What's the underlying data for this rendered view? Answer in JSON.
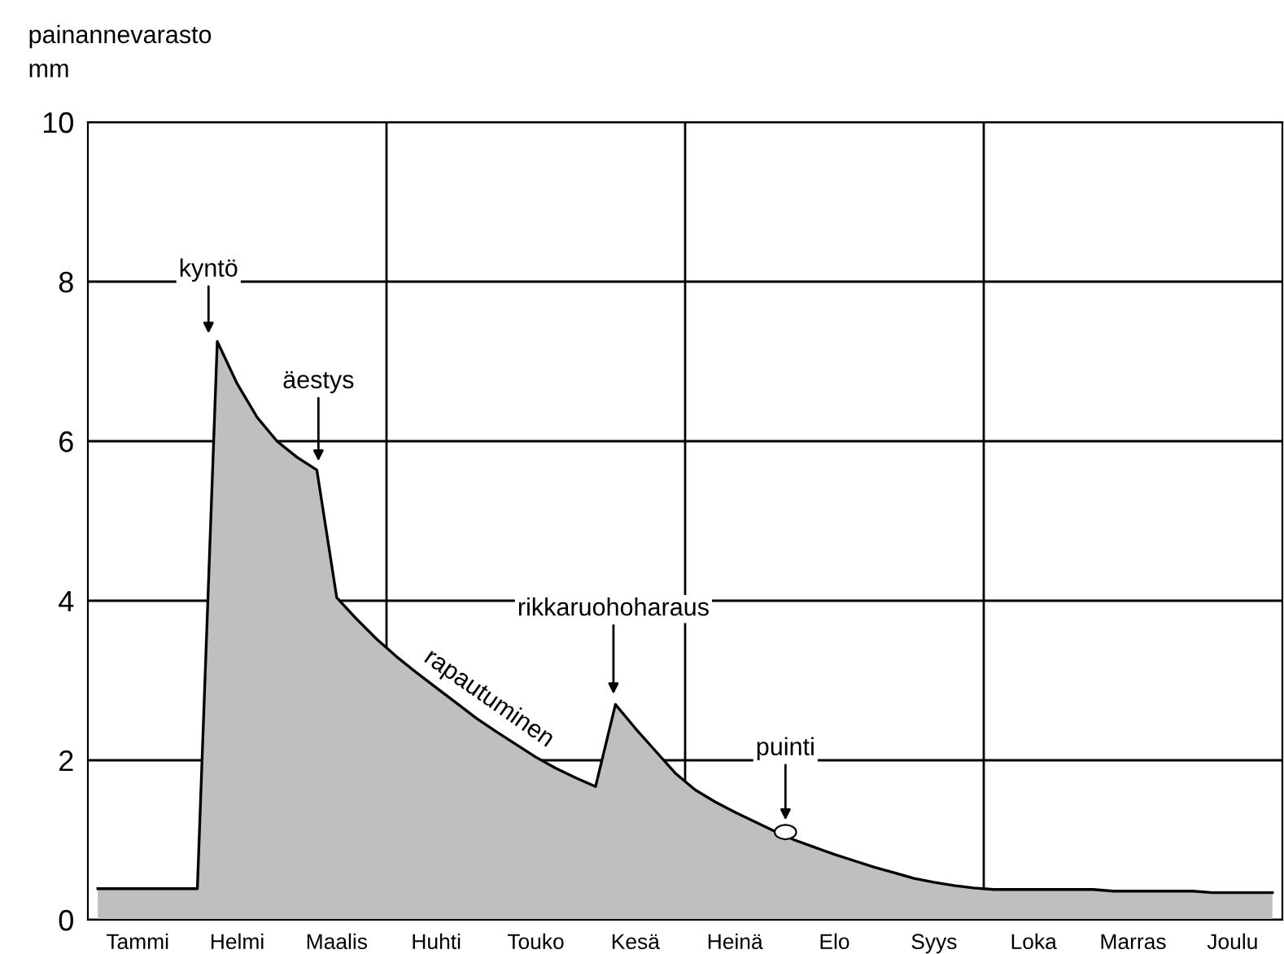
{
  "chart_data": {
    "type": "area",
    "ylabel": "painannevarasto\nmm",
    "categories": [
      null,
      null,
      "Tammi",
      null,
      null,
      null,
      null,
      "Helmi",
      null,
      null,
      null,
      null,
      "Maalis",
      null,
      null,
      null,
      null,
      "Huhti",
      null,
      null,
      null,
      null,
      "Touko",
      null,
      null,
      null,
      null,
      "Kesä",
      null,
      null,
      null,
      null,
      "Heinä",
      null,
      null,
      null,
      null,
      "Elo",
      null,
      null,
      null,
      null,
      "Syys",
      null,
      null,
      null,
      null,
      "Loka",
      null,
      null,
      null,
      null,
      "Marras",
      null,
      null,
      null,
      null,
      "Joulu",
      null,
      null
    ],
    "ylim": [
      0,
      10
    ],
    "yticks": [
      0,
      2,
      4,
      6,
      8,
      10
    ],
    "grid": "y",
    "legend": false,
    "series": [
      {
        "color": "#bebfc1",
        "values": [
          0.39,
          0.39,
          0.39,
          0.39,
          0.39,
          0.39,
          7.25,
          6.72,
          6.3,
          6.0,
          5.8,
          5.64,
          4.04,
          3.77,
          3.52,
          3.3,
          3.1,
          2.91,
          2.72,
          2.53,
          2.36,
          2.2,
          2.04,
          1.9,
          1.78,
          1.67,
          2.7,
          2.4,
          2.12,
          1.84,
          1.63,
          1.48,
          1.35,
          1.23,
          1.11,
          1.0,
          0.91,
          0.82,
          0.74,
          0.66,
          0.59,
          0.52,
          0.47,
          0.43,
          0.4,
          0.38,
          0.38,
          0.38,
          0.38,
          0.38,
          0.38,
          0.36,
          0.36,
          0.36,
          0.36,
          0.36,
          0.34,
          0.34,
          0.34,
          0.34
        ]
      }
    ],
    "annotations": [
      "kyntö",
      "äestys",
      "rikkaruohoharaus",
      "puinti",
      "rapautuminen"
    ]
  }
}
